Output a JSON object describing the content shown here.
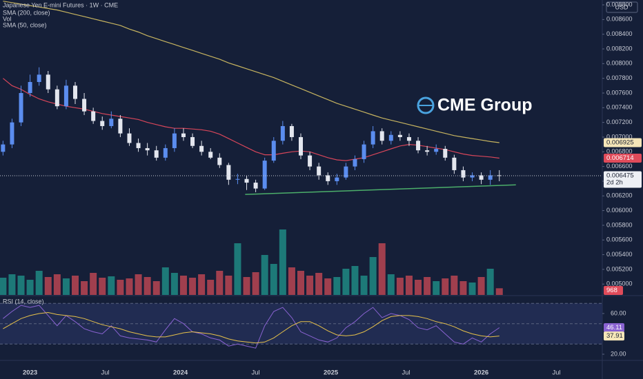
{
  "chart_data": [
    {
      "type": "candlestick",
      "title": "Japanese Yen E-mini Futures · 1W · CME",
      "currency": "USD",
      "logo": "CME Group",
      "countdown": "2d 2h",
      "up_color": "#5b8def",
      "down_color": "#e3e6ee",
      "x": [
        2022.82,
        2022.88,
        2022.94,
        2023.0,
        2023.06,
        2023.12,
        2023.18,
        2023.24,
        2023.3,
        2023.36,
        2023.42,
        2023.48,
        2023.54,
        2023.6,
        2023.66,
        2023.72,
        2023.78,
        2023.84,
        2023.9,
        2023.96,
        2024.02,
        2024.08,
        2024.14,
        2024.2,
        2024.26,
        2024.32,
        2024.38,
        2024.44,
        2024.5,
        2024.56,
        2024.62,
        2024.68,
        2024.74,
        2024.8,
        2024.86,
        2024.92,
        2024.98,
        2025.04,
        2025.1,
        2025.16,
        2025.22,
        2025.28,
        2025.34,
        2025.4,
        2025.46,
        2025.52,
        2025.58,
        2025.64,
        2025.7,
        2025.76,
        2025.82,
        2025.88,
        2025.94,
        2026.0,
        2026.06,
        2026.12
      ],
      "open": [
        0.0068,
        0.0069,
        0.0072,
        0.0076,
        0.00775,
        0.00785,
        0.00765,
        0.00742,
        0.0077,
        0.00752,
        0.00735,
        0.00722,
        0.00715,
        0.00725,
        0.00705,
        0.00692,
        0.00685,
        0.00682,
        0.00672,
        0.00685,
        0.00705,
        0.007,
        0.00688,
        0.0068,
        0.00672,
        0.00662,
        0.00642,
        0.00643,
        0.00638,
        0.0063,
        0.00668,
        0.00695,
        0.00715,
        0.007,
        0.00675,
        0.0066,
        0.00648,
        0.0064,
        0.00645,
        0.0066,
        0.0067,
        0.0069,
        0.00708,
        0.00695,
        0.00703,
        0.007,
        0.00695,
        0.00682,
        0.0068,
        0.00684,
        0.00672,
        0.00655,
        0.00645,
        0.00648,
        0.00642,
        0.00648
      ],
      "high": [
        0.00695,
        0.00725,
        0.0077,
        0.00785,
        0.00795,
        0.0079,
        0.0077,
        0.00778,
        0.00775,
        0.0076,
        0.0074,
        0.00728,
        0.00735,
        0.0073,
        0.00712,
        0.00698,
        0.00692,
        0.00688,
        0.0069,
        0.00712,
        0.00712,
        0.00705,
        0.00695,
        0.00685,
        0.00678,
        0.00665,
        0.0065,
        0.00648,
        0.00642,
        0.00672,
        0.007,
        0.00722,
        0.00718,
        0.00705,
        0.0068,
        0.00665,
        0.00652,
        0.0065,
        0.00665,
        0.00675,
        0.00695,
        0.00715,
        0.00712,
        0.00708,
        0.00708,
        0.00705,
        0.007,
        0.00688,
        0.0069,
        0.00688,
        0.00676,
        0.0066,
        0.00652,
        0.00652,
        0.00655,
        0.00655
      ],
      "low": [
        0.00675,
        0.00685,
        0.00715,
        0.00755,
        0.0077,
        0.0076,
        0.00738,
        0.00738,
        0.00745,
        0.0073,
        0.00718,
        0.0071,
        0.00712,
        0.007,
        0.00688,
        0.0068,
        0.00675,
        0.00668,
        0.00668,
        0.0068,
        0.00695,
        0.00685,
        0.00675,
        0.0067,
        0.00658,
        0.00635,
        0.00636,
        0.00628,
        0.00625,
        0.00628,
        0.00665,
        0.0069,
        0.00695,
        0.0067,
        0.00655,
        0.00642,
        0.00635,
        0.00635,
        0.00642,
        0.00655,
        0.00665,
        0.00685,
        0.0069,
        0.0069,
        0.00695,
        0.00688,
        0.00678,
        0.00675,
        0.00676,
        0.00668,
        0.0065,
        0.0064,
        0.0064,
        0.00636,
        0.00635,
        0.0064
      ],
      "close": [
        0.0069,
        0.0072,
        0.0076,
        0.00775,
        0.00785,
        0.00765,
        0.00742,
        0.0077,
        0.00752,
        0.00735,
        0.00722,
        0.00715,
        0.00725,
        0.00705,
        0.00692,
        0.00685,
        0.00682,
        0.00672,
        0.00685,
        0.00705,
        0.007,
        0.00688,
        0.0068,
        0.00672,
        0.00662,
        0.00642,
        0.00643,
        0.00638,
        0.0063,
        0.00668,
        0.00695,
        0.00715,
        0.007,
        0.00675,
        0.0066,
        0.00648,
        0.0064,
        0.00645,
        0.0066,
        0.0067,
        0.0069,
        0.00708,
        0.00695,
        0.00703,
        0.007,
        0.00695,
        0.00682,
        0.0068,
        0.00684,
        0.00672,
        0.00655,
        0.00645,
        0.00648,
        0.00642,
        0.00648,
        0.006475
      ],
      "series": [
        {
          "name": "SMA (200, close)",
          "color": "#c8b560",
          "values": [
            0.00885,
            0.00883,
            0.00881,
            0.00879,
            0.00877,
            0.00875,
            0.00873,
            0.0087,
            0.00867,
            0.00864,
            0.00861,
            0.00858,
            0.00855,
            0.00852,
            0.00847,
            0.00843,
            0.00838,
            0.00834,
            0.0083,
            0.00826,
            0.00822,
            0.00818,
            0.00814,
            0.0081,
            0.00806,
            0.00801,
            0.00797,
            0.00793,
            0.00789,
            0.00785,
            0.00781,
            0.00776,
            0.00771,
            0.00766,
            0.00761,
            0.00756,
            0.00751,
            0.00746,
            0.00742,
            0.00738,
            0.00734,
            0.0073,
            0.00726,
            0.00723,
            0.0072,
            0.00717,
            0.00714,
            0.00711,
            0.00708,
            0.00705,
            0.00702,
            0.007,
            0.00698,
            0.00696,
            0.00694,
            0.006925
          ]
        },
        {
          "name": "SMA (50, close)",
          "color": "#d9465a",
          "values": [
            0.0078,
            0.0077,
            0.00765,
            0.00758,
            0.00752,
            0.00748,
            0.00745,
            0.00742,
            0.0074,
            0.00738,
            0.00735,
            0.00732,
            0.0073,
            0.00728,
            0.00726,
            0.00724,
            0.0072,
            0.00717,
            0.00714,
            0.00712,
            0.00712,
            0.00711,
            0.0071,
            0.00708,
            0.00704,
            0.00698,
            0.00692,
            0.00686,
            0.0068,
            0.00676,
            0.00676,
            0.00678,
            0.0068,
            0.00681,
            0.0068,
            0.00676,
            0.00672,
            0.00669,
            0.00668,
            0.0067,
            0.00672,
            0.00676,
            0.0068,
            0.00684,
            0.00688,
            0.0069,
            0.00689,
            0.00687,
            0.00685,
            0.00683,
            0.0068,
            0.00677,
            0.00675,
            0.00674,
            0.00673,
            0.006714
          ]
        }
      ],
      "volume": {
        "name": "Vol",
        "up_color": "#1f8a84",
        "down_color": "#b84552",
        "vlim": [
          0,
          12000
        ],
        "values": [
          2500,
          3000,
          2800,
          2200,
          3500,
          2600,
          3000,
          2400,
          2800,
          2000,
          3200,
          2500,
          2700,
          2200,
          2400,
          3000,
          2600,
          2000,
          4000,
          3200,
          2800,
          2500,
          3000,
          2200,
          3500,
          2800,
          7500,
          2600,
          3300,
          5800,
          4500,
          9500,
          4000,
          3500,
          2800,
          3200,
          2400,
          2600,
          3800,
          4200,
          2800,
          5500,
          7500,
          3000,
          2500,
          2800,
          2200,
          2600,
          2000,
          2400,
          2800,
          2000,
          1800,
          2600,
          3800,
          968
        ]
      },
      "trendline": {
        "color": "#4caf6a",
        "x": [
          2024.43,
          2026.23
        ],
        "y": [
          0.00622,
          0.00635
        ]
      },
      "xlim": [
        2022.8,
        2026.8
      ],
      "xticks": [
        2023,
        {
          "value": 2023.5,
          "label": "Jul"
        },
        2024,
        {
          "value": 2024.5,
          "label": "Jul"
        },
        2025,
        {
          "value": 2025.5,
          "label": "Jul"
        },
        2026,
        {
          "value": 2026.5,
          "label": "Jul"
        }
      ],
      "ylim": [
        0.004852,
        0.008866
      ],
      "yticks": [
        {
          "value": 0.005,
          "label": "0.005000"
        },
        {
          "value": 0.0052,
          "label": "0.005200"
        },
        {
          "value": 0.0054,
          "label": "0.005400"
        },
        {
          "value": 0.0056,
          "label": "0.005600"
        },
        {
          "value": 0.0058,
          "label": "0.005800"
        },
        {
          "value": 0.006,
          "label": "0.006000"
        },
        {
          "value": 0.0062,
          "label": "0.006200"
        },
        {
          "value": 0.0064,
          "label": "0.006400"
        },
        {
          "value": 0.0066,
          "label": "0.006600"
        },
        {
          "value": 0.0068,
          "label": "0.006800"
        },
        {
          "value": 0.007,
          "label": "0.007000"
        },
        {
          "value": 0.0072,
          "label": "0.007200"
        },
        {
          "value": 0.0074,
          "label": "0.007400"
        },
        {
          "value": 0.0076,
          "label": "0.007600"
        },
        {
          "value": 0.0078,
          "label": "0.007800"
        },
        {
          "value": 0.008,
          "label": "0.008000"
        },
        {
          "value": 0.0082,
          "label": "0.008200"
        },
        {
          "value": 0.0084,
          "label": "0.008400"
        },
        {
          "value": 0.0086,
          "label": "0.008600"
        },
        {
          "value": 0.0088,
          "label": "0.008800"
        }
      ]
    },
    {
      "type": "line",
      "title": "RSI (14, close)",
      "levels": [
        70,
        50,
        30
      ],
      "band_color": "#212c52",
      "series": [
        {
          "color": "#8a63d2",
          "values": [
            55,
            62,
            68,
            66,
            68,
            58,
            48,
            58,
            52,
            45,
            42,
            40,
            48,
            38,
            36,
            35,
            34,
            32,
            44,
            55,
            50,
            42,
            40,
            36,
            34,
            28,
            30,
            28,
            26,
            48,
            62,
            66,
            56,
            42,
            38,
            34,
            32,
            36,
            46,
            52,
            60,
            66,
            56,
            60,
            58,
            54,
            46,
            44,
            48,
            40,
            32,
            30,
            36,
            32,
            40,
            46.11
          ]
        },
        {
          "color": "#e8c24a",
          "values": [
            45,
            50,
            55,
            58,
            60,
            61,
            59,
            58,
            57,
            55,
            52,
            49,
            47,
            45,
            42,
            40,
            38,
            37,
            37,
            39,
            41,
            42,
            41,
            40,
            38,
            35,
            33,
            32,
            31,
            32,
            36,
            42,
            48,
            52,
            52,
            48,
            43,
            39,
            38,
            39,
            42,
            47,
            53,
            57,
            58,
            58,
            57,
            55,
            52,
            50,
            47,
            43,
            40,
            38,
            37,
            37.91
          ]
        }
      ],
      "ylim": [
        14.6,
        76.9
      ],
      "yticks": [
        {
          "value": 20,
          "label": "20.00"
        },
        {
          "value": 60,
          "label": "60.00"
        }
      ]
    }
  ]
}
